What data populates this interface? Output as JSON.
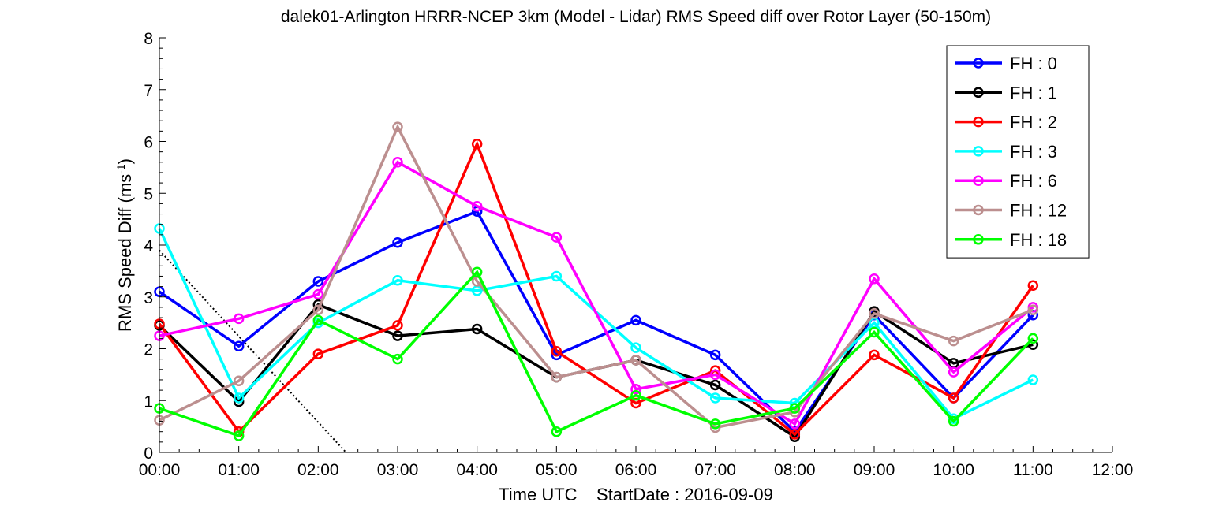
{
  "chart_data": {
    "type": "line",
    "title": "dalek01-Arlington HRRR-NCEP 3km (Model - Lidar) RMS Speed diff over Rotor Layer (50-150m)",
    "xlabel": "Time UTC    StartDate : 2016-09-09",
    "ylabel_main": "RMS Speed Diff (ms",
    "ylabel_sup": "-1",
    "ylabel_end": ")",
    "x": [
      "00:00",
      "01:00",
      "02:00",
      "03:00",
      "04:00",
      "05:00",
      "06:00",
      "07:00",
      "08:00",
      "09:00",
      "10:00",
      "11:00"
    ],
    "xticks": [
      "00:00",
      "01:00",
      "02:00",
      "03:00",
      "04:00",
      "05:00",
      "06:00",
      "07:00",
      "08:00",
      "09:00",
      "10:00",
      "11:00",
      "12:00"
    ],
    "xlim": [
      0,
      12
    ],
    "ylim": [
      0,
      8
    ],
    "yticks": [
      "0",
      "1",
      "2",
      "3",
      "4",
      "5",
      "6",
      "7",
      "8"
    ],
    "grid": false,
    "legend_position": "top-right",
    "series": [
      {
        "name": "FH : 0",
        "color": "#0000ff",
        "values": [
          3.1,
          2.05,
          3.3,
          4.05,
          4.65,
          1.88,
          2.55,
          1.88,
          0.4,
          2.65,
          1.05,
          2.65
        ]
      },
      {
        "name": "FH : 1",
        "color": "#000000",
        "values": [
          2.45,
          0.98,
          2.85,
          2.25,
          2.38,
          1.45,
          1.78,
          1.3,
          0.3,
          2.72,
          1.72,
          2.08
        ]
      },
      {
        "name": "FH : 2",
        "color": "#ff0000",
        "values": [
          2.48,
          0.4,
          1.9,
          2.45,
          5.95,
          1.95,
          0.95,
          1.58,
          0.35,
          1.88,
          1.05,
          3.22
        ]
      },
      {
        "name": "FH : 3",
        "color": "#00ffff",
        "values": [
          4.32,
          1.05,
          2.5,
          3.32,
          3.12,
          3.4,
          2.02,
          1.05,
          0.95,
          2.5,
          0.65,
          1.4
        ]
      },
      {
        "name": "FH : 6",
        "color": "#ff00ff",
        "values": [
          2.25,
          2.58,
          3.05,
          5.6,
          4.75,
          4.15,
          1.22,
          1.5,
          0.55,
          3.35,
          1.55,
          2.8
        ]
      },
      {
        "name": "FH : 12",
        "color": "#bc8f8f",
        "values": [
          0.62,
          1.38,
          2.75,
          6.28,
          3.3,
          1.45,
          1.78,
          0.48,
          0.78,
          2.68,
          2.15,
          2.75
        ]
      },
      {
        "name": "FH : 18",
        "color": "#00ff00",
        "values": [
          0.85,
          0.32,
          2.55,
          1.8,
          3.48,
          0.4,
          1.1,
          0.55,
          0.85,
          2.32,
          0.6,
          2.2
        ]
      }
    ],
    "reference_line": {
      "style": "dotted",
      "color": "#000000",
      "x": [
        0,
        2.35
      ],
      "y": [
        3.9,
        0
      ]
    }
  }
}
